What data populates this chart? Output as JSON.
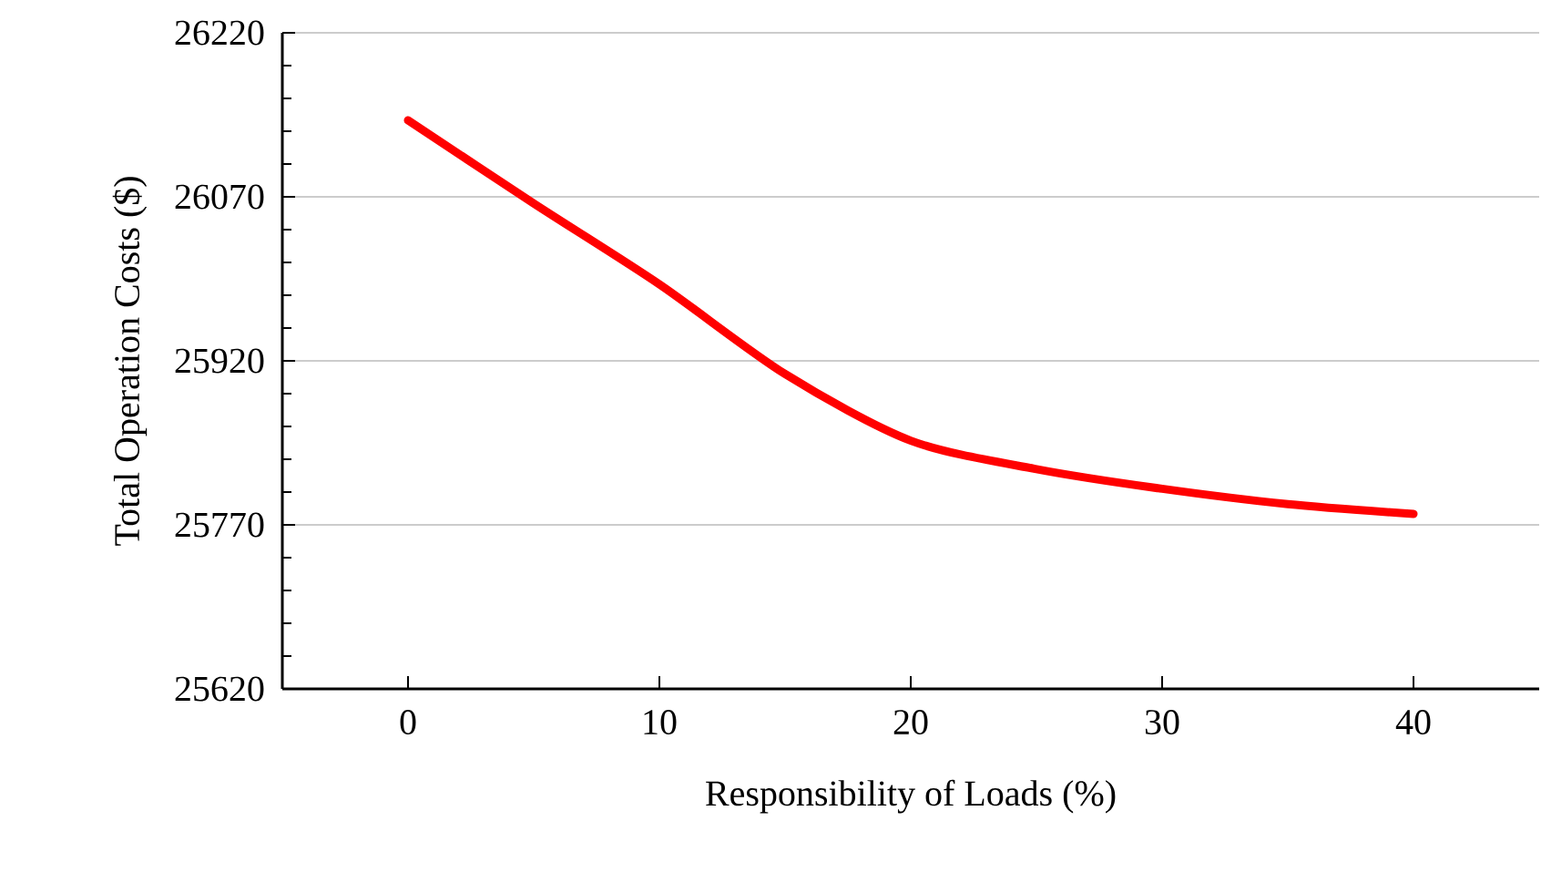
{
  "chart_data": {
    "type": "line",
    "xlabel": "Responsibility of Loads (%)",
    "ylabel": "Total Operation Costs ($)",
    "x": [
      0,
      5,
      10,
      15,
      20,
      25,
      30,
      35,
      40
    ],
    "series": [
      {
        "color": "#ff0000",
        "values": [
          26140,
          26064,
          25990,
          25908,
          25847,
          25821,
          25803,
          25789,
          25780
        ]
      }
    ],
    "xlim": [
      -5,
      45
    ],
    "ylim": [
      25620,
      26220
    ],
    "xticks": [
      0,
      10,
      20,
      30,
      40
    ],
    "yticks": [
      25620,
      25770,
      25920,
      26070,
      26220
    ],
    "grid": "y",
    "marker": "none",
    "line_style": "solid"
  }
}
